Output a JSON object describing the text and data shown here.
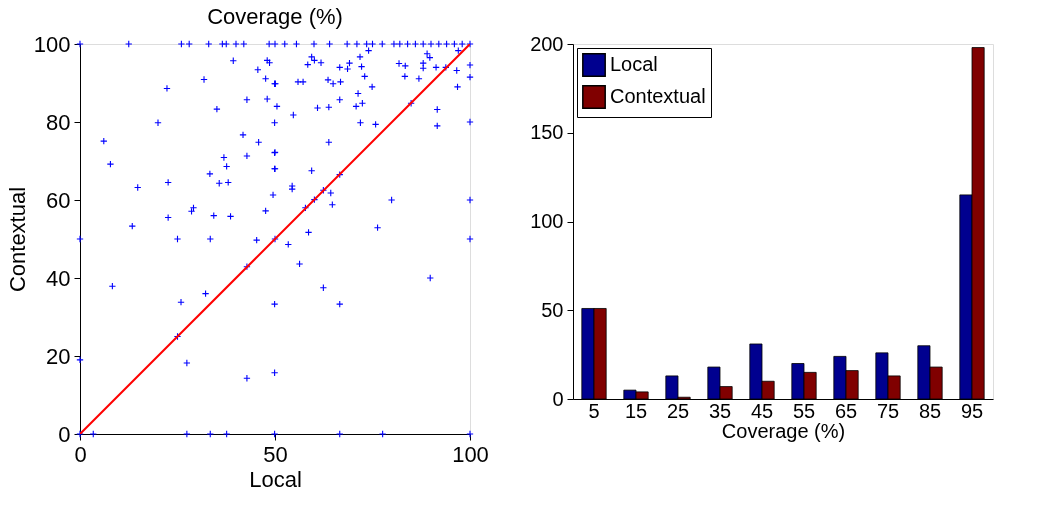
{
  "chart_data": [
    {
      "type": "scatter",
      "title": "Coverage (%)",
      "xlabel": "Local",
      "ylabel": "Contextual",
      "xlim": [
        0,
        100
      ],
      "ylim": [
        0,
        100
      ],
      "xticks": [
        0,
        50,
        100
      ],
      "yticks": [
        0,
        20,
        40,
        60,
        80,
        100
      ],
      "grid": false,
      "legend": false,
      "series": [
        {
          "type": "scatter",
          "color": "#0000ff",
          "marker": "cross",
          "x": [
            0,
            12.5,
            26,
            28,
            33,
            36.5,
            37.5,
            40,
            42,
            48.5,
            50,
            52.5,
            55.5,
            60,
            64,
            68.5,
            71,
            73.5,
            75,
            77.5,
            80.5,
            82,
            84,
            86,
            88,
            90,
            92,
            94,
            96,
            98,
            100,
            39.3,
            48,
            48.6,
            45.6,
            31.8,
            47.6,
            49.9,
            22.3,
            42.8,
            48,
            50.5,
            35.1,
            20,
            49.9,
            41.8,
            45.8,
            6.1,
            36.9,
            42.8,
            49.9,
            7.8,
            37.6,
            49.9,
            33.3,
            22.6,
            35.7,
            38,
            14.8,
            49.5,
            29.1,
            28.6,
            22.6,
            34.3,
            38.6,
            47.6,
            13.4,
            25,
            33.4,
            45.3,
            0,
            74,
            97,
            89,
            89.7,
            59.4,
            60.1,
            61.8,
            58.4,
            71.8,
            69.1,
            66.6,
            68.6,
            72.2,
            81.8,
            83.4,
            88,
            88,
            91.3,
            93.8,
            96.6,
            100,
            100,
            73,
            83.3,
            86.9,
            96.8,
            63.6,
            64.9,
            66.8,
            55.9,
            57.2,
            50.1,
            74.9,
            71.3,
            66.6,
            72.4,
            70.8,
            60.9,
            63.8,
            84.9,
            91.6,
            91.6,
            54.7,
            71.9,
            75.8,
            63.8,
            100,
            50,
            50,
            59.4,
            66.6,
            54.4,
            54.4,
            62.4,
            64.3,
            60.1,
            64.7,
            57.8,
            79.9,
            100,
            76.3,
            58.6,
            100,
            50,
            8.3,
            32.2,
            25.9,
            42.8,
            49.9,
            25,
            27.4,
            42.8,
            49.9,
            0,
            0,
            3.4,
            27.4,
            33.4,
            37.6,
            49.9,
            53.4,
            56.3,
            62.4,
            66.6,
            89.8,
            66.6,
            77.6,
            100
          ],
          "values": [
            100,
            100,
            100,
            100,
            100,
            100,
            100,
            100,
            100,
            100,
            100,
            100,
            100,
            100,
            100,
            100,
            100,
            100,
            100,
            100,
            100,
            100,
            100,
            100,
            100,
            100,
            100,
            100,
            100,
            100,
            100,
            95.7,
            95.8,
            95.2,
            93.4,
            90.9,
            91.1,
            89.8,
            88.6,
            85.7,
            85.9,
            84,
            83.3,
            79.8,
            79.8,
            76.7,
            74.8,
            75.1,
            70.9,
            71.3,
            72.1,
            69.2,
            68.6,
            68,
            66.7,
            64.5,
            64.3,
            64.5,
            63.2,
            61.3,
            58,
            57.1,
            55.5,
            56,
            55.8,
            57.2,
            53.3,
            50,
            50,
            49.7,
            50,
            98.3,
            98.3,
            97.5,
            96.5,
            96.7,
            95.8,
            95.2,
            94.7,
            96.7,
            95.1,
            94,
            93.6,
            94.2,
            95,
            94.4,
            95.1,
            93.8,
            94,
            94,
            93.2,
            94.6,
            91.5,
            91.7,
            91.7,
            91.1,
            89,
            90.8,
            89.8,
            90.3,
            90.3,
            90.3,
            89.8,
            89,
            87.3,
            85.7,
            84.8,
            84,
            83.6,
            83.8,
            84.8,
            83.2,
            79,
            81.8,
            79.8,
            79.4,
            74.8,
            80,
            72.2,
            68,
            67.5,
            66.5,
            63.6,
            62.8,
            62.5,
            61.8,
            60.1,
            58.8,
            58,
            60,
            60,
            52.9,
            51.7,
            50,
            50,
            37.9,
            36,
            33.8,
            42.9,
            33.3,
            25,
            18.2,
            14.3,
            15.7,
            19,
            0,
            0,
            0,
            0,
            0,
            0,
            48.6,
            43.6,
            37.5,
            33.3,
            40,
            0,
            0,
            0
          ]
        },
        {
          "type": "line",
          "color": "#ff0000",
          "x": [
            0,
            100
          ],
          "values": [
            0,
            100
          ]
        }
      ]
    },
    {
      "type": "bar",
      "xlabel": "Coverage (%)",
      "categories": [
        "5",
        "15",
        "25",
        "35",
        "45",
        "55",
        "65",
        "75",
        "85",
        "95"
      ],
      "ylim": [
        0,
        200
      ],
      "yticks": [
        0,
        50,
        100,
        150,
        200
      ],
      "grid": false,
      "legend": "top left",
      "series": [
        {
          "name": "Local",
          "color": "#00008f",
          "values": [
            51,
            5,
            13,
            18,
            31,
            20,
            24,
            26,
            30,
            115
          ]
        },
        {
          "name": "Contextual",
          "color": "#800000",
          "values": [
            51,
            4,
            1,
            7,
            10,
            15,
            16,
            13,
            18,
            198
          ]
        }
      ]
    }
  ]
}
